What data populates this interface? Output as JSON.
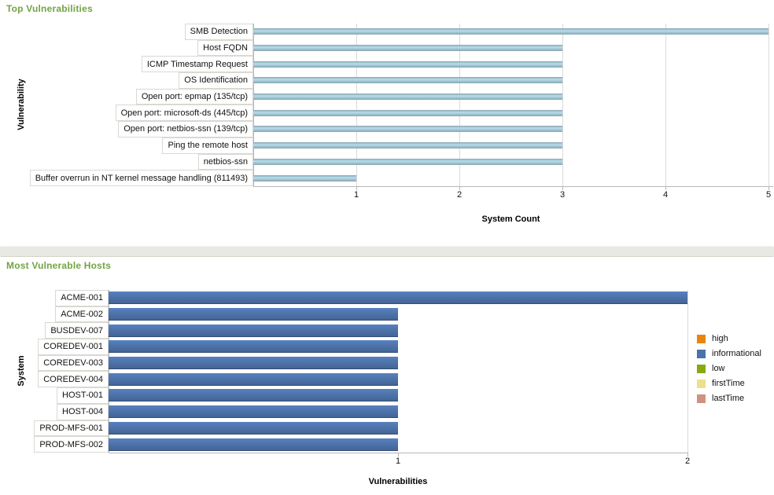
{
  "chart_data": [
    {
      "type": "bar",
      "orientation": "horizontal",
      "title": "Top Vulnerabilities",
      "title_color": "#74a343",
      "xlabel": "System Count",
      "ylabel": "Vulnerability",
      "categories": [
        "SMB Detection",
        "Host FQDN",
        "ICMP Timestamp Request",
        "OS Identification",
        "Open port: epmap (135/tcp)",
        "Open port: microsoft-ds (445/tcp)",
        "Open port: netbios-ssn (139/tcp)",
        "Ping the remote host",
        "netbios-ssn",
        "Buffer overrun in NT kernel message handling (811493)"
      ],
      "values": [
        5,
        3,
        3,
        3,
        3,
        3,
        3,
        3,
        3,
        1
      ],
      "xlim": [
        0,
        5
      ],
      "xticks": [
        1,
        2,
        3,
        4,
        5
      ],
      "gridline_ticks": [
        1,
        2,
        3,
        4,
        5
      ],
      "grid": true,
      "bar_color": "#a6c9d7",
      "legend": null,
      "legend_position": null
    },
    {
      "type": "bar",
      "orientation": "horizontal",
      "title": "Most Vulnerable Hosts",
      "title_color": "#74a343",
      "xlabel": "Vulnerabilities",
      "ylabel": "System",
      "categories": [
        "ACME-001",
        "ACME-002",
        "BUSDEV-007",
        "COREDEV-001",
        "COREDEV-003",
        "COREDEV-004",
        "HOST-001",
        "HOST-004",
        "PROD-MFS-001",
        "PROD-MFS-002"
      ],
      "values": [
        2,
        1,
        1,
        1,
        1,
        1,
        1,
        1,
        1,
        1
      ],
      "xlim": [
        0,
        2
      ],
      "xticks": [
        1,
        2
      ],
      "gridline_ticks": [
        2
      ],
      "grid": true,
      "bar_color": "#4b6fa5",
      "legend": [
        {
          "label": "high",
          "color": "#e8850c"
        },
        {
          "label": "informational",
          "color": "#4b72a9"
        },
        {
          "label": "low",
          "color": "#87a912"
        },
        {
          "label": "firstTime",
          "color": "#ecdf8d"
        },
        {
          "label": "lastTime",
          "color": "#d2917e"
        }
      ],
      "legend_position": "right"
    }
  ]
}
